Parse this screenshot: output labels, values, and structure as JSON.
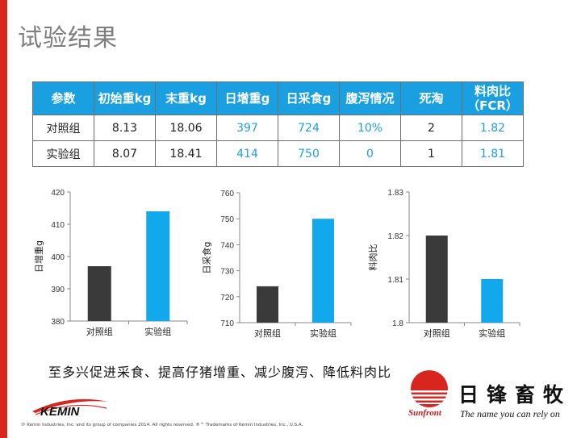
{
  "title": "试验结果",
  "table": {
    "headers": [
      "参数",
      "初始重kg",
      "末重kg",
      "日增重g",
      "日采食g",
      "腹泻情况",
      "死淘",
      "料肉比\n（FCR）"
    ],
    "rows": [
      [
        "对照组",
        "8.13",
        "18.06",
        "397",
        "724",
        "10%",
        "2",
        "1.82"
      ],
      [
        "实验组",
        "8.07",
        "18.41",
        "414",
        "750",
        "0",
        "1",
        "1.81"
      ]
    ]
  },
  "chart_data": [
    {
      "type": "bar",
      "ylabel": "日增重g",
      "categories": [
        "对照组",
        "实验组"
      ],
      "values": [
        397,
        414
      ],
      "ylim": [
        380,
        420
      ],
      "yticks": [
        "380",
        "390",
        "400",
        "410",
        "420"
      ],
      "colors": [
        "#3a3a3a",
        "#12a8ec"
      ]
    },
    {
      "type": "bar",
      "ylabel": "日采食g",
      "categories": [
        "对照组",
        "实验组"
      ],
      "values": [
        724,
        750
      ],
      "ylim": [
        710,
        760
      ],
      "yticks": [
        "710",
        "720",
        "730",
        "740",
        "750",
        "760"
      ],
      "colors": [
        "#3a3a3a",
        "#12a8ec"
      ]
    },
    {
      "type": "bar",
      "ylabel": "料肉比",
      "categories": [
        "对照组",
        "实验组"
      ],
      "values": [
        1.82,
        1.81
      ],
      "ylim": [
        1.8,
        1.83
      ],
      "yticks": [
        "1.8",
        "1.81",
        "1.82",
        "1.83"
      ],
      "colors": [
        "#3a3a3a",
        "#12a8ec"
      ]
    }
  ],
  "conclusion": "至多兴促进采食、提高仔猪增重、减少腹泻、降低料肉比",
  "footer": {
    "kemin_logo": "KEMIN",
    "copyright": "© Kemin Industries, Inc. and its group of companies 2014. All rights reserved.  ®™ Trademarks of Kemin Industries, Inc., U.S.A.",
    "brand_cn": "日锋畜牧",
    "brand_en": "Sunfront",
    "slogan": "The name you can rely on"
  },
  "colors": {
    "accent": "#1aa0e0",
    "red": "#d8261f",
    "control_bar": "#3a3a3a",
    "test_bar": "#12a8ec"
  }
}
